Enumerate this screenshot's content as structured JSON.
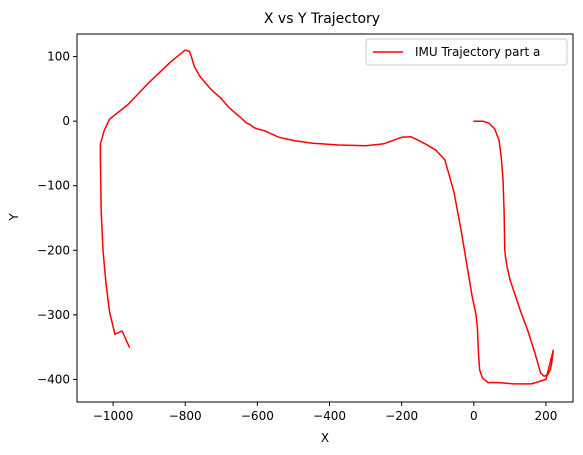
{
  "chart_data": {
    "type": "line",
    "title": "X vs Y Trajectory",
    "xlabel": "X",
    "ylabel": "Y",
    "xlim": [
      -1100,
      275
    ],
    "ylim": [
      -435,
      135
    ],
    "xticks": [
      -1000,
      -800,
      -600,
      -400,
      -200,
      0,
      200
    ],
    "xtick_labels": [
      "−1000",
      "−800",
      "−600",
      "−400",
      "−200",
      "0",
      "200"
    ],
    "yticks": [
      100,
      0,
      -100,
      -200,
      -300,
      -400
    ],
    "ytick_labels": [
      "100",
      "0",
      "−100",
      "−200",
      "−300",
      "−400"
    ],
    "grid": false,
    "legend_position": "upper right",
    "series": [
      {
        "name": "IMU Trajectory part a",
        "color": "#ff0000",
        "x": [
          0,
          25,
          42,
          58,
          70,
          76,
          81,
          84,
          85,
          86,
          88,
          92,
          100,
          115,
          130,
          150,
          170,
          185,
          195,
          205,
          212,
          216,
          220,
          200,
          160,
          110,
          70,
          40,
          24,
          16,
          13,
          10,
          6,
          -5,
          -20,
          -35,
          -55,
          -80,
          -105,
          -135,
          -160,
          -175,
          -200,
          -250,
          -300,
          -375,
          -450,
          -500,
          -540,
          -580,
          -600,
          -610,
          -620,
          -630,
          -645,
          -660,
          -680,
          -700,
          -730,
          -760,
          -775,
          -783,
          -788,
          -800,
          -840,
          -900,
          -960,
          -1010,
          -1025,
          -1030,
          -1035,
          -1035,
          -1033,
          -1028,
          -1020,
          -1010,
          -995,
          -975,
          -955
        ],
        "y": [
          0,
          0,
          -3,
          -12,
          -30,
          -55,
          -90,
          -140,
          -175,
          -200,
          -210,
          -225,
          -245,
          -270,
          -295,
          -325,
          -360,
          -390,
          -395,
          -393,
          -385,
          -375,
          -355,
          -400,
          -407,
          -407,
          -405,
          -405,
          -398,
          -385,
          -360,
          -320,
          -300,
          -270,
          -220,
          -170,
          -110,
          -60,
          -45,
          -35,
          -28,
          -24,
          -25,
          -35,
          -38,
          -37,
          -34,
          -30,
          -25,
          -15,
          -12,
          -10,
          -5,
          -3,
          5,
          12,
          22,
          35,
          50,
          70,
          85,
          100,
          108,
          110,
          92,
          60,
          25,
          3,
          -15,
          -25,
          -35,
          -60,
          -140,
          -200,
          -250,
          -295,
          -330,
          -325,
          -350
        ]
      }
    ]
  }
}
